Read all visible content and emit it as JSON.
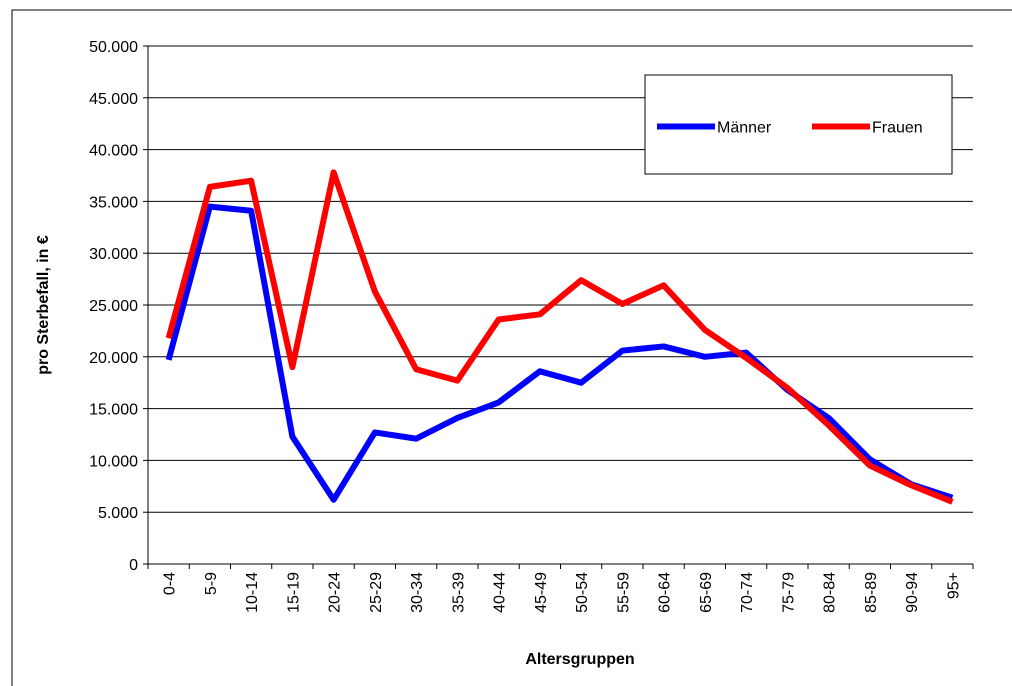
{
  "chart_data": {
    "type": "line",
    "xlabel": "Altersgruppen",
    "ylabel": "pro Sterbefall, in €",
    "categories": [
      "0-4",
      "5-9",
      "10-14",
      "15-19",
      "20-24",
      "25-29",
      "30-34",
      "35-39",
      "40-44",
      "45-49",
      "50-54",
      "55-59",
      "60-64",
      "65-69",
      "70-74",
      "75-79",
      "80-84",
      "85-89",
      "90-94",
      "95+"
    ],
    "series": [
      {
        "name": "Männer",
        "color": "#0000ff",
        "values": [
          19700,
          34500,
          34100,
          12300,
          6200,
          12700,
          12100,
          14100,
          15600,
          18600,
          17500,
          20600,
          21000,
          20000,
          20400,
          16800,
          14100,
          10100,
          7700,
          6400
        ]
      },
      {
        "name": "Frauen",
        "color": "#ff0000",
        "values": [
          21800,
          36400,
          37000,
          19000,
          37800,
          26300,
          18800,
          17700,
          23600,
          24100,
          27400,
          25100,
          26900,
          22600,
          19900,
          17000,
          13400,
          9500,
          7600,
          6000
        ]
      }
    ],
    "ylim": [
      0,
      50000
    ],
    "yticks": [
      0,
      {
        "value": 5000,
        "label": "5.000"
      },
      {
        "value": 10000,
        "label": "10.000"
      },
      {
        "value": 15000,
        "label": "15.000"
      },
      {
        "value": 20000,
        "label": "20.000"
      },
      {
        "value": 25000,
        "label": "25.000"
      },
      {
        "value": 30000,
        "label": "30.000"
      },
      {
        "value": 35000,
        "label": "35.000"
      },
      {
        "value": 40000,
        "label": "40.000"
      },
      {
        "value": 45000,
        "label": "45.000"
      },
      {
        "value": 50000,
        "label": "50.000"
      }
    ],
    "grid": true,
    "legend": "top-right"
  }
}
